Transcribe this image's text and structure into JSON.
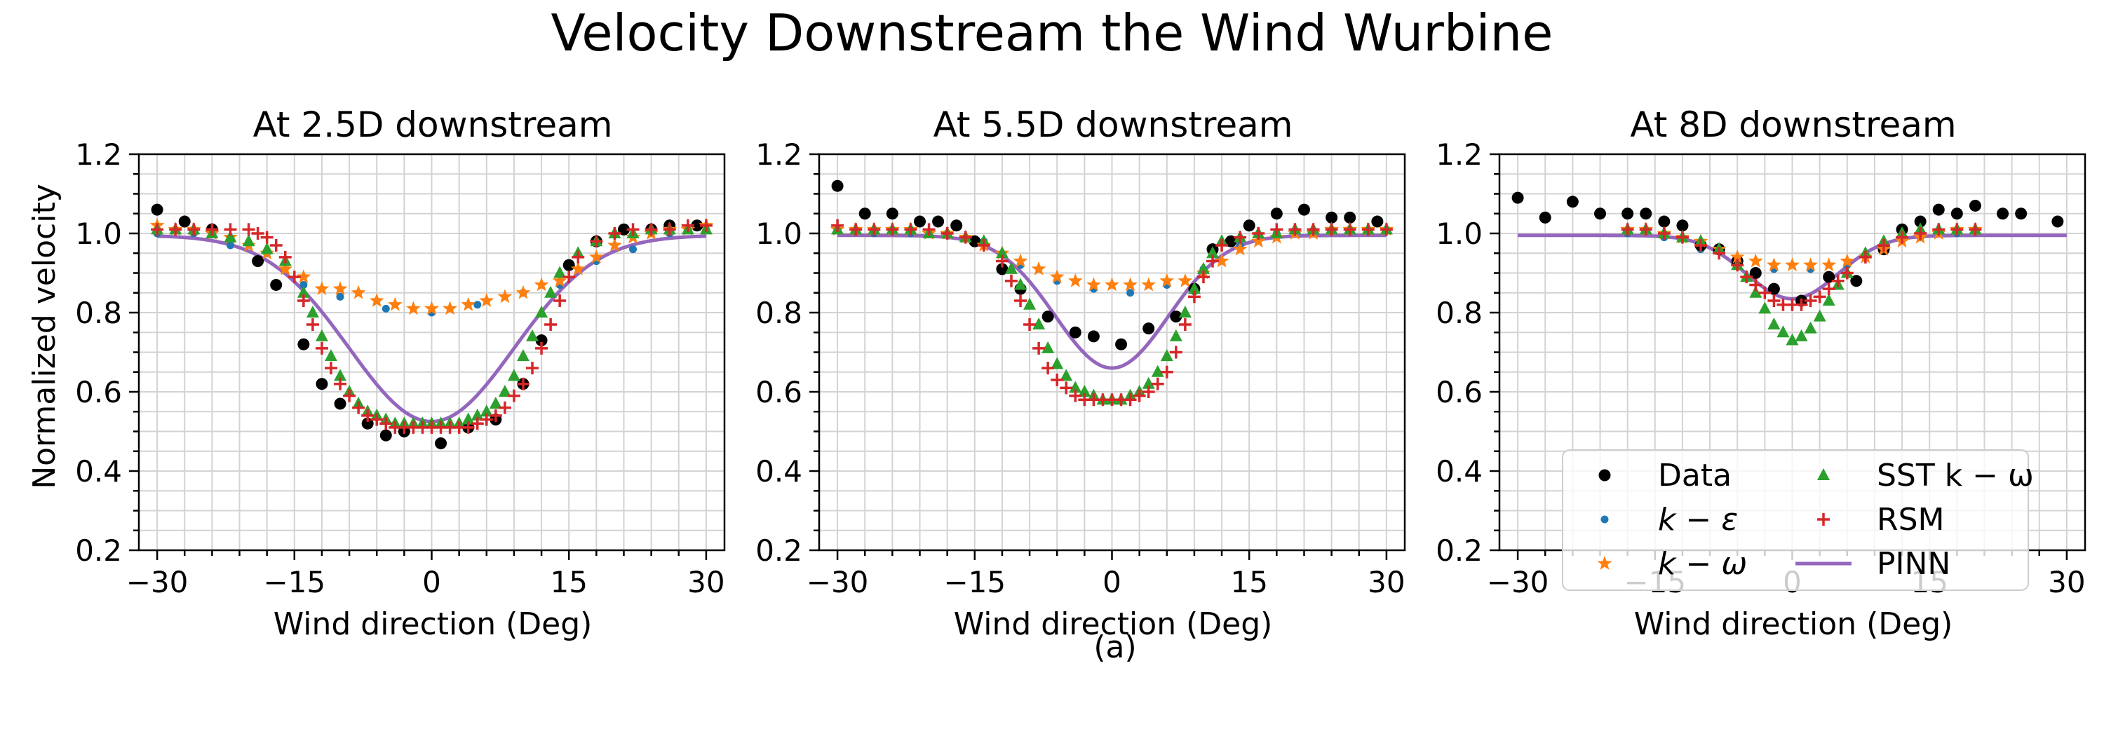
{
  "figure": {
    "title": "Velocity Downstream the Wind Wurbine",
    "caption": "(a)"
  },
  "colors": {
    "Data": "#000000",
    "k-epsilon": "#1f77b4",
    "k-omega": "#ff7f0e",
    "SST": "#2ca02c",
    "RSM": "#d62728",
    "PINN": "#9467bd",
    "grid": "#d3d3d3"
  },
  "legend": {
    "placement": "lower-right of third panel",
    "entries": [
      {
        "key": "Data",
        "label": "Data",
        "marker": "circle"
      },
      {
        "key": "k-epsilon",
        "label": "k − ε",
        "marker": "small-circle"
      },
      {
        "key": "k-omega",
        "label": "k − ω",
        "marker": "star"
      },
      {
        "key": "SST",
        "label": "SST k − ω",
        "marker": "triangle"
      },
      {
        "key": "RSM",
        "label": "RSM",
        "marker": "plus"
      },
      {
        "key": "PINN",
        "label": "PINN",
        "marker": "line"
      }
    ]
  },
  "chart_data": [
    {
      "type": "scatter",
      "title": "At 2.5D downstream",
      "xlabel": "Wind direction (Deg)",
      "ylabel": "Normalized velocity",
      "xlim": [
        -32,
        32
      ],
      "ylim": [
        0.2,
        1.2
      ],
      "xticks": [
        -30,
        -15,
        0,
        15,
        30
      ],
      "yticks": [
        0.2,
        0.4,
        0.6,
        0.8,
        1.0,
        1.2
      ],
      "yticklabels": [
        "0.2",
        "0.4",
        "0.6",
        "0.8",
        "1.0",
        "1.2"
      ],
      "grid": true,
      "series": [
        {
          "name": "Data",
          "x": [
            -30,
            -27,
            -24,
            -19,
            -17,
            -14,
            -12,
            -10,
            -7,
            -5,
            -3,
            1,
            4,
            7,
            10,
            12,
            15,
            18,
            21,
            24,
            26,
            29
          ],
          "y": [
            1.06,
            1.03,
            1.01,
            0.93,
            0.87,
            0.72,
            0.62,
            0.57,
            0.52,
            0.49,
            0.5,
            0.47,
            0.51,
            0.53,
            0.62,
            0.73,
            0.92,
            0.98,
            1.01,
            1.01,
            1.02,
            1.02
          ]
        },
        {
          "name": "k-epsilon",
          "x": [
            -30,
            -26,
            -22,
            -18,
            -14,
            -10,
            -5,
            0,
            5,
            10,
            14,
            18,
            22,
            26,
            30
          ],
          "y": [
            1.0,
            1.0,
            0.97,
            0.95,
            0.87,
            0.84,
            0.81,
            0.8,
            0.82,
            0.85,
            0.87,
            0.93,
            0.96,
            1.0,
            1.01
          ]
        },
        {
          "name": "k-omega",
          "x": [
            -30,
            -28,
            -26,
            -24,
            -22,
            -20,
            -18,
            -16,
            -14,
            -12,
            -10,
            -8,
            -6,
            -4,
            -2,
            0,
            2,
            4,
            6,
            8,
            10,
            12,
            14,
            16,
            18,
            20,
            22,
            24,
            26,
            28,
            30
          ],
          "y": [
            1.02,
            1.01,
            1.01,
            1.0,
            0.99,
            0.97,
            0.95,
            0.91,
            0.89,
            0.86,
            0.86,
            0.85,
            0.83,
            0.82,
            0.81,
            0.81,
            0.81,
            0.82,
            0.83,
            0.84,
            0.85,
            0.87,
            0.88,
            0.91,
            0.94,
            0.97,
            0.99,
            1.0,
            1.01,
            1.01,
            1.02
          ]
        },
        {
          "name": "SST",
          "x": [
            -30,
            -28,
            -26,
            -24,
            -22,
            -20,
            -18,
            -16,
            -14,
            -13,
            -12,
            -11,
            -10,
            -9,
            -8,
            -7,
            -6,
            -5,
            -4,
            -3,
            -2,
            -1,
            0,
            1,
            2,
            3,
            4,
            5,
            6,
            7,
            8,
            9,
            10,
            11,
            12,
            13,
            14,
            16,
            18,
            20,
            22,
            24,
            26,
            28,
            30
          ],
          "y": [
            1.01,
            1.01,
            1.01,
            1.0,
            0.99,
            0.98,
            0.96,
            0.93,
            0.85,
            0.8,
            0.74,
            0.69,
            0.64,
            0.6,
            0.57,
            0.55,
            0.54,
            0.53,
            0.52,
            0.52,
            0.52,
            0.52,
            0.52,
            0.52,
            0.52,
            0.52,
            0.53,
            0.54,
            0.55,
            0.57,
            0.6,
            0.64,
            0.69,
            0.74,
            0.8,
            0.85,
            0.9,
            0.95,
            0.98,
            1.0,
            1.0,
            1.01,
            1.01,
            1.01,
            1.01
          ]
        },
        {
          "name": "RSM",
          "x": [
            -30,
            -28,
            -26,
            -24,
            -22,
            -20,
            -19,
            -18,
            -17,
            -16,
            -15,
            -14,
            -13,
            -12,
            -11,
            -10,
            -9,
            -8,
            -7,
            -6,
            -5,
            -4,
            -3,
            -2,
            -1,
            0,
            1,
            2,
            3,
            4,
            5,
            6,
            7,
            8,
            9,
            10,
            11,
            12,
            13,
            14,
            15,
            16,
            18,
            20,
            22,
            24,
            26,
            28,
            30
          ],
          "y": [
            1.01,
            1.01,
            1.01,
            1.01,
            1.01,
            1.01,
            1.0,
            0.99,
            0.97,
            0.94,
            0.89,
            0.83,
            0.77,
            0.71,
            0.66,
            0.62,
            0.59,
            0.56,
            0.54,
            0.53,
            0.52,
            0.51,
            0.51,
            0.51,
            0.51,
            0.51,
            0.51,
            0.51,
            0.51,
            0.51,
            0.52,
            0.53,
            0.54,
            0.56,
            0.59,
            0.62,
            0.66,
            0.71,
            0.77,
            0.83,
            0.89,
            0.94,
            0.98,
            1.0,
            1.01,
            1.01,
            1.01,
            1.02,
            1.02
          ]
        },
        {
          "name": "PINN",
          "amplitude": 0.47,
          "sigma": 9.0,
          "base": 0.995
        }
      ]
    },
    {
      "type": "scatter",
      "title": "At 5.5D downstream",
      "xlabel": "Wind direction (Deg)",
      "ylabel": "",
      "xlim": [
        -32,
        32
      ],
      "ylim": [
        0.2,
        1.2
      ],
      "xticks": [
        -30,
        -15,
        0,
        15,
        30
      ],
      "yticks": [
        0.2,
        0.4,
        0.6,
        0.8,
        1.0,
        1.2
      ],
      "yticklabels": [
        "0.2",
        "0.4",
        "0.6",
        "0.8",
        "1.0",
        "1.2"
      ],
      "grid": true,
      "series": [
        {
          "name": "Data",
          "x": [
            -30,
            -27,
            -24,
            -21,
            -19,
            -17,
            -15,
            -12,
            -10,
            -7,
            -4,
            -2,
            1,
            4,
            7,
            9,
            11,
            13,
            15,
            18,
            21,
            24,
            26,
            29
          ],
          "y": [
            1.12,
            1.05,
            1.05,
            1.03,
            1.03,
            1.02,
            0.98,
            0.91,
            0.86,
            0.79,
            0.75,
            0.74,
            0.72,
            0.76,
            0.79,
            0.86,
            0.96,
            0.98,
            1.02,
            1.05,
            1.06,
            1.04,
            1.04,
            1.03
          ]
        },
        {
          "name": "k-epsilon",
          "x": [
            -30,
            -26,
            -22,
            -18,
            -14,
            -10,
            -6,
            -2,
            2,
            6,
            10,
            14,
            18,
            22,
            26,
            30
          ],
          "y": [
            1.01,
            1.0,
            1.0,
            1.0,
            0.98,
            0.92,
            0.88,
            0.86,
            0.85,
            0.87,
            0.91,
            0.97,
            1.0,
            1.0,
            1.01,
            1.01
          ]
        },
        {
          "name": "k-omega",
          "x": [
            -30,
            -28,
            -26,
            -24,
            -22,
            -20,
            -18,
            -16,
            -14,
            -12,
            -10,
            -8,
            -6,
            -4,
            -2,
            0,
            2,
            4,
            6,
            8,
            10,
            12,
            14,
            16,
            18,
            20,
            22,
            24,
            26,
            28,
            30
          ],
          "y": [
            1.01,
            1.01,
            1.01,
            1.01,
            1.01,
            1.0,
            1.0,
            0.99,
            0.97,
            0.95,
            0.93,
            0.91,
            0.89,
            0.88,
            0.87,
            0.87,
            0.87,
            0.87,
            0.88,
            0.88,
            0.9,
            0.93,
            0.96,
            0.98,
            0.99,
            1.0,
            1.0,
            1.01,
            1.01,
            1.01,
            1.01
          ]
        },
        {
          "name": "SST",
          "x": [
            -30,
            -28,
            -26,
            -24,
            -22,
            -20,
            -18,
            -16,
            -14,
            -12,
            -11,
            -10,
            -9,
            -8,
            -7,
            -6,
            -5,
            -4,
            -3,
            -2,
            -1,
            0,
            1,
            2,
            3,
            4,
            5,
            6,
            7,
            8,
            9,
            10,
            11,
            12,
            14,
            16,
            18,
            20,
            22,
            24,
            26,
            28,
            30
          ],
          "y": [
            1.01,
            1.01,
            1.01,
            1.01,
            1.01,
            1.0,
            1.0,
            0.99,
            0.98,
            0.95,
            0.91,
            0.87,
            0.82,
            0.77,
            0.71,
            0.67,
            0.64,
            0.61,
            0.6,
            0.59,
            0.58,
            0.58,
            0.58,
            0.59,
            0.6,
            0.62,
            0.65,
            0.69,
            0.74,
            0.8,
            0.86,
            0.91,
            0.95,
            0.98,
            0.99,
            1.0,
            1.0,
            1.01,
            1.01,
            1.01,
            1.01,
            1.01,
            1.01
          ]
        },
        {
          "name": "RSM",
          "x": [
            -30,
            -28,
            -26,
            -24,
            -22,
            -20,
            -18,
            -16,
            -14,
            -12,
            -11,
            -10,
            -9,
            -8,
            -7,
            -6,
            -5,
            -4,
            -3,
            -2,
            -1,
            0,
            1,
            2,
            3,
            4,
            5,
            6,
            7,
            8,
            9,
            10,
            11,
            12,
            14,
            16,
            18,
            20,
            22,
            24,
            26,
            28,
            30
          ],
          "y": [
            1.02,
            1.01,
            1.01,
            1.01,
            1.01,
            1.01,
            1.0,
            0.99,
            0.97,
            0.93,
            0.88,
            0.83,
            0.77,
            0.71,
            0.66,
            0.63,
            0.61,
            0.59,
            0.58,
            0.58,
            0.58,
            0.58,
            0.58,
            0.58,
            0.59,
            0.6,
            0.62,
            0.65,
            0.7,
            0.77,
            0.84,
            0.89,
            0.93,
            0.97,
            0.99,
            1.0,
            1.01,
            1.01,
            1.01,
            1.01,
            1.01,
            1.01,
            1.01
          ]
        },
        {
          "name": "PINN",
          "amplitude": 0.335,
          "sigma": 6.2,
          "base": 0.995
        }
      ]
    },
    {
      "type": "scatter",
      "title": "At 8D downstream",
      "xlabel": "Wind direction (Deg)",
      "ylabel": "",
      "xlim": [
        -32,
        32
      ],
      "ylim": [
        0.2,
        1.2
      ],
      "xticks": [
        -30,
        -15,
        0,
        15,
        30
      ],
      "yticks": [
        0.2,
        0.4,
        0.6,
        0.8,
        1.0,
        1.2
      ],
      "yticklabels": [
        "0.2",
        "0.4",
        "0.6",
        "0.8",
        "1.0",
        "1.2"
      ],
      "grid": true,
      "series": [
        {
          "name": "Data",
          "x": [
            -30,
            -27,
            -24,
            -21,
            -18,
            -16,
            -14,
            -12,
            -10,
            -8,
            -6,
            -4,
            -2,
            1,
            4,
            7,
            10,
            12,
            14,
            16,
            18,
            20,
            23,
            25,
            29
          ],
          "y": [
            1.09,
            1.04,
            1.08,
            1.05,
            1.05,
            1.05,
            1.03,
            1.02,
            0.97,
            0.96,
            0.93,
            0.9,
            0.86,
            0.83,
            0.89,
            0.88,
            0.96,
            1.01,
            1.03,
            1.06,
            1.05,
            1.07,
            1.05,
            1.05,
            1.03
          ]
        },
        {
          "name": "k-epsilon",
          "x": [
            -18,
            -14,
            -10,
            -6,
            -2,
            2,
            6,
            10,
            14,
            18
          ],
          "y": [
            1.0,
            0.99,
            0.96,
            0.93,
            0.91,
            0.91,
            0.92,
            0.96,
            0.99,
            1.0
          ]
        },
        {
          "name": "k-omega",
          "x": [
            -18,
            -16,
            -14,
            -12,
            -10,
            -8,
            -6,
            -4,
            -2,
            0,
            2,
            4,
            6,
            8,
            10,
            12,
            14,
            16,
            18,
            20
          ],
          "y": [
            1.01,
            1.01,
            1.0,
            0.99,
            0.98,
            0.96,
            0.94,
            0.93,
            0.92,
            0.92,
            0.92,
            0.92,
            0.93,
            0.94,
            0.96,
            0.98,
            0.99,
            1.0,
            1.01,
            1.01
          ]
        },
        {
          "name": "SST",
          "x": [
            -18,
            -16,
            -14,
            -12,
            -10,
            -8,
            -6,
            -5,
            -4,
            -3,
            -2,
            -1,
            0,
            1,
            2,
            3,
            4,
            5,
            6,
            8,
            10,
            12,
            14,
            16,
            18,
            20
          ],
          "y": [
            1.01,
            1.01,
            1.0,
            0.99,
            0.98,
            0.96,
            0.92,
            0.89,
            0.85,
            0.81,
            0.77,
            0.75,
            0.73,
            0.74,
            0.76,
            0.79,
            0.83,
            0.87,
            0.9,
            0.95,
            0.98,
            1.0,
            1.01,
            1.01,
            1.01,
            1.01
          ]
        },
        {
          "name": "RSM",
          "x": [
            -18,
            -16,
            -14,
            -12,
            -10,
            -8,
            -6,
            -5,
            -4,
            -3,
            -2,
            -1,
            0,
            1,
            2,
            3,
            4,
            5,
            6,
            8,
            10,
            12,
            14,
            16,
            18,
            20
          ],
          "y": [
            1.01,
            1.01,
            1.0,
            0.99,
            0.97,
            0.95,
            0.92,
            0.89,
            0.87,
            0.85,
            0.83,
            0.82,
            0.82,
            0.82,
            0.83,
            0.84,
            0.86,
            0.88,
            0.9,
            0.94,
            0.97,
            0.99,
            1.0,
            1.01,
            1.01,
            1.01
          ]
        },
        {
          "name": "PINN",
          "amplitude": 0.16,
          "sigma": 5.0,
          "base": 0.995
        }
      ]
    }
  ]
}
